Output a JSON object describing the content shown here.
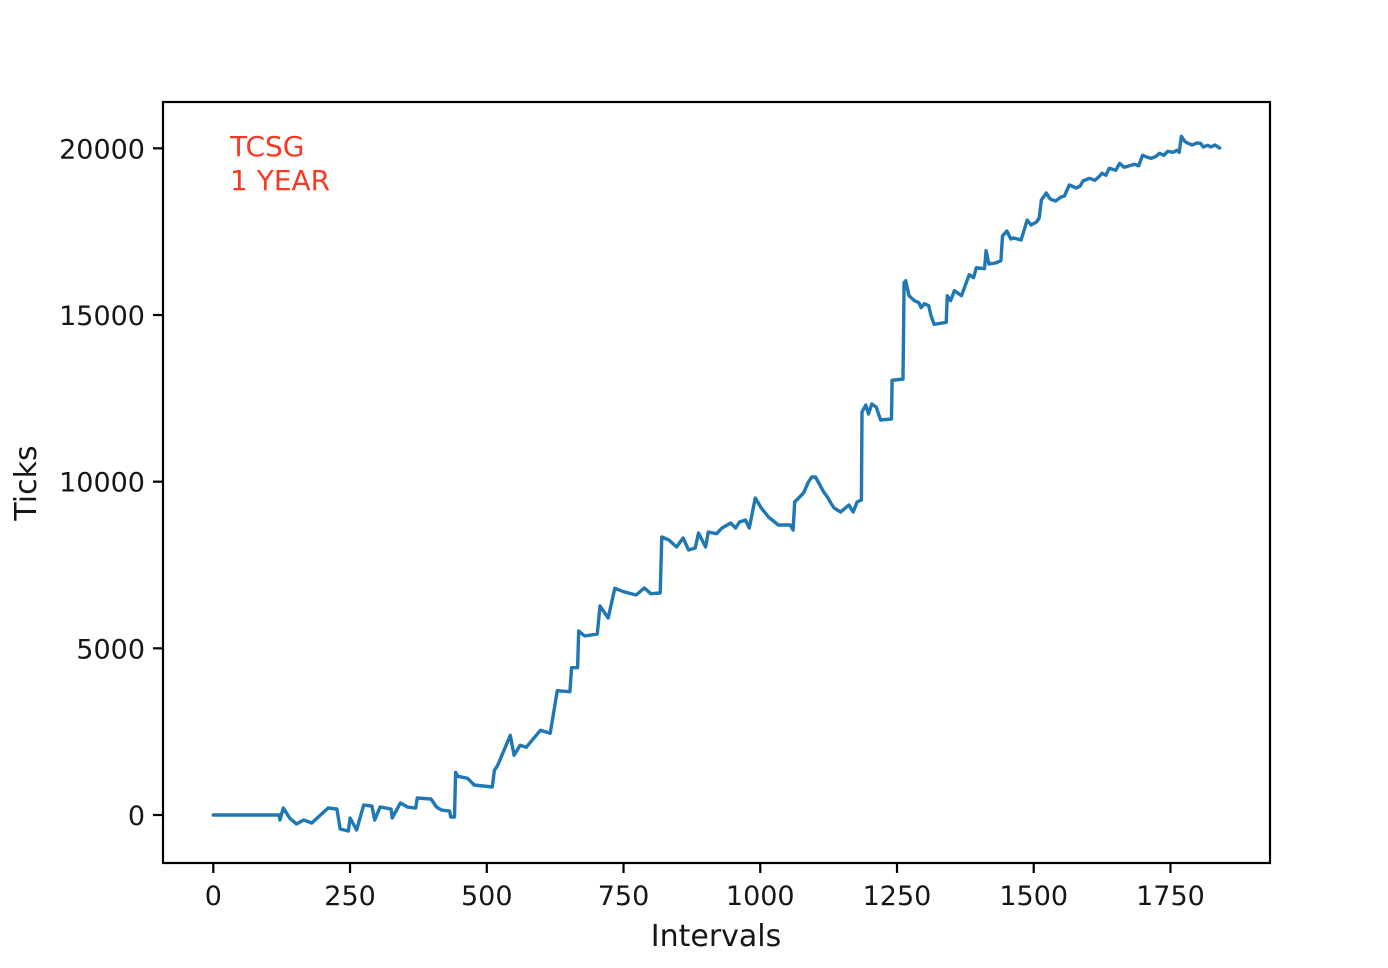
{
  "chart_data": {
    "type": "line",
    "title": "",
    "xlabel": "Intervals",
    "ylabel": "Ticks",
    "grid": false,
    "legend": null,
    "xlim": [
      -92,
      1932
    ],
    "ylim": [
      -1440,
      21390
    ],
    "x_ticks": [
      0,
      250,
      500,
      750,
      1000,
      1250,
      1500,
      1750
    ],
    "y_ticks": [
      0,
      5000,
      10000,
      15000,
      20000
    ],
    "annotations": [
      {
        "text": "TCSG",
        "color": "#f93822"
      },
      {
        "text": "1 YEAR",
        "color": "#f93822"
      }
    ],
    "series": [
      {
        "name": "Ticks",
        "color": "#1f77b4",
        "points": [
          [
            0,
            0
          ],
          [
            120,
            0
          ],
          [
            122,
            -150
          ],
          [
            128,
            210
          ],
          [
            140,
            -100
          ],
          [
            152,
            -270
          ],
          [
            165,
            -150
          ],
          [
            180,
            -240
          ],
          [
            190,
            -90
          ],
          [
            210,
            210
          ],
          [
            226,
            180
          ],
          [
            232,
            -420
          ],
          [
            247,
            -480
          ],
          [
            250,
            -90
          ],
          [
            262,
            -450
          ],
          [
            275,
            300
          ],
          [
            290,
            270
          ],
          [
            295,
            -150
          ],
          [
            305,
            240
          ],
          [
            325,
            180
          ],
          [
            327,
            -90
          ],
          [
            342,
            360
          ],
          [
            355,
            240
          ],
          [
            370,
            210
          ],
          [
            373,
            510
          ],
          [
            398,
            480
          ],
          [
            408,
            240
          ],
          [
            417,
            150
          ],
          [
            432,
            120
          ],
          [
            434,
            -60
          ],
          [
            441,
            -60
          ],
          [
            443,
            1280
          ],
          [
            447,
            1160
          ],
          [
            465,
            1100
          ],
          [
            477,
            900
          ],
          [
            510,
            840
          ],
          [
            514,
            1340
          ],
          [
            520,
            1490
          ],
          [
            543,
            2390
          ],
          [
            550,
            1790
          ],
          [
            561,
            2090
          ],
          [
            572,
            2030
          ],
          [
            598,
            2540
          ],
          [
            616,
            2450
          ],
          [
            629,
            3730
          ],
          [
            652,
            3700
          ],
          [
            655,
            4420
          ],
          [
            666,
            4420
          ],
          [
            668,
            5520
          ],
          [
            679,
            5370
          ],
          [
            702,
            5430
          ],
          [
            707,
            6270
          ],
          [
            722,
            5910
          ],
          [
            734,
            6800
          ],
          [
            750,
            6700
          ],
          [
            773,
            6600
          ],
          [
            788,
            6810
          ],
          [
            800,
            6640
          ],
          [
            817,
            6660
          ],
          [
            820,
            8340
          ],
          [
            833,
            8250
          ],
          [
            847,
            8040
          ],
          [
            859,
            8310
          ],
          [
            869,
            7950
          ],
          [
            881,
            8010
          ],
          [
            887,
            8460
          ],
          [
            900,
            8040
          ],
          [
            905,
            8490
          ],
          [
            920,
            8440
          ],
          [
            930,
            8610
          ],
          [
            946,
            8760
          ],
          [
            955,
            8610
          ],
          [
            962,
            8790
          ],
          [
            973,
            8850
          ],
          [
            980,
            8610
          ],
          [
            991,
            9510
          ],
          [
            1002,
            9210
          ],
          [
            1015,
            8940
          ],
          [
            1033,
            8700
          ],
          [
            1055,
            8700
          ],
          [
            1060,
            8550
          ],
          [
            1063,
            9390
          ],
          [
            1079,
            9660
          ],
          [
            1088,
            9990
          ],
          [
            1094,
            10140
          ],
          [
            1101,
            10140
          ],
          [
            1107,
            9960
          ],
          [
            1116,
            9690
          ],
          [
            1124,
            9510
          ],
          [
            1129,
            9360
          ],
          [
            1135,
            9210
          ],
          [
            1147,
            9090
          ],
          [
            1162,
            9300
          ],
          [
            1170,
            9090
          ],
          [
            1177,
            9390
          ],
          [
            1185,
            9450
          ],
          [
            1186,
            12090
          ],
          [
            1193,
            12300
          ],
          [
            1198,
            12030
          ],
          [
            1204,
            12330
          ],
          [
            1212,
            12240
          ],
          [
            1220,
            11850
          ],
          [
            1240,
            11880
          ],
          [
            1241,
            13040
          ],
          [
            1261,
            13080
          ],
          [
            1263,
            15970
          ],
          [
            1266,
            16030
          ],
          [
            1272,
            15580
          ],
          [
            1282,
            15430
          ],
          [
            1290,
            15370
          ],
          [
            1294,
            15220
          ],
          [
            1300,
            15340
          ],
          [
            1308,
            15280
          ],
          [
            1312,
            14990
          ],
          [
            1318,
            14720
          ],
          [
            1340,
            14780
          ],
          [
            1342,
            15580
          ],
          [
            1348,
            15430
          ],
          [
            1355,
            15730
          ],
          [
            1368,
            15580
          ],
          [
            1382,
            16210
          ],
          [
            1390,
            16120
          ],
          [
            1395,
            16420
          ],
          [
            1410,
            16390
          ],
          [
            1413,
            16930
          ],
          [
            1418,
            16530
          ],
          [
            1430,
            16560
          ],
          [
            1440,
            16630
          ],
          [
            1443,
            17370
          ],
          [
            1451,
            17520
          ],
          [
            1458,
            17280
          ],
          [
            1463,
            17310
          ],
          [
            1477,
            17250
          ],
          [
            1488,
            17850
          ],
          [
            1495,
            17700
          ],
          [
            1505,
            17790
          ],
          [
            1510,
            17910
          ],
          [
            1514,
            18450
          ],
          [
            1523,
            18660
          ],
          [
            1530,
            18480
          ],
          [
            1540,
            18420
          ],
          [
            1550,
            18540
          ],
          [
            1556,
            18570
          ],
          [
            1565,
            18900
          ],
          [
            1578,
            18810
          ],
          [
            1585,
            18870
          ],
          [
            1590,
            19020
          ],
          [
            1602,
            19100
          ],
          [
            1612,
            19040
          ],
          [
            1620,
            19160
          ],
          [
            1625,
            19250
          ],
          [
            1632,
            19190
          ],
          [
            1638,
            19400
          ],
          [
            1650,
            19340
          ],
          [
            1657,
            19550
          ],
          [
            1665,
            19430
          ],
          [
            1672,
            19460
          ],
          [
            1684,
            19520
          ],
          [
            1692,
            19480
          ],
          [
            1699,
            19790
          ],
          [
            1708,
            19730
          ],
          [
            1715,
            19700
          ],
          [
            1724,
            19760
          ],
          [
            1730,
            19850
          ],
          [
            1738,
            19790
          ],
          [
            1745,
            19910
          ],
          [
            1755,
            19880
          ],
          [
            1762,
            19940
          ],
          [
            1766,
            19880
          ],
          [
            1770,
            20360
          ],
          [
            1776,
            20210
          ],
          [
            1782,
            20150
          ],
          [
            1790,
            20100
          ],
          [
            1798,
            20160
          ],
          [
            1805,
            20150
          ],
          [
            1810,
            20040
          ],
          [
            1818,
            20090
          ],
          [
            1824,
            20040
          ],
          [
            1831,
            20100
          ],
          [
            1840,
            20010
          ]
        ]
      }
    ]
  }
}
